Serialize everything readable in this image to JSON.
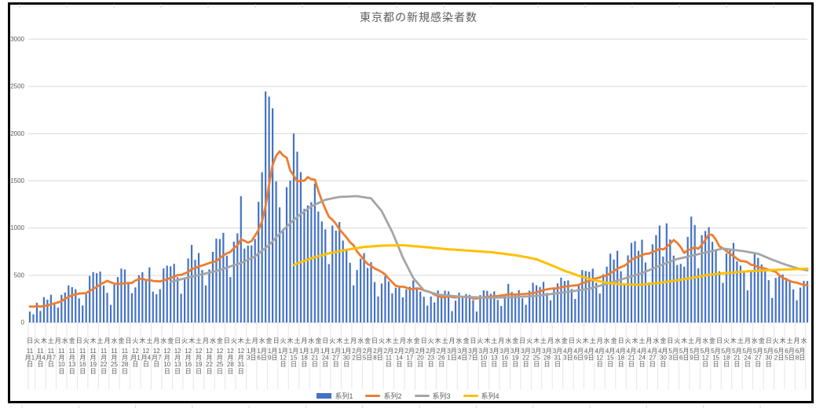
{
  "title": "東京都の新規感染者数",
  "colors": {
    "frame": "#000000",
    "gridline": "#D9D9D9",
    "axis_text": "#595959",
    "tick_separator": "#E6E6E6",
    "sheet_tick": "#D9D9D9"
  },
  "chart_data": {
    "type": "combo_bar_line",
    "title": "東京都の新規感染者数",
    "x_start": "2020-11-01",
    "x_end": "2021-06-10",
    "x_interval_days": 1,
    "first_date_label": "11月1日",
    "last_date_label": "6月8日",
    "date_label_every_days": 3,
    "weekday_label_every_days": 2,
    "weekday_names": [
      "日",
      "月",
      "火",
      "水",
      "木",
      "金",
      "土"
    ],
    "month_numbers": [
      11,
      12,
      1,
      2,
      3,
      4,
      5,
      6
    ],
    "month_lengths": [
      30,
      31,
      31,
      28,
      31,
      30,
      31,
      30
    ],
    "ylim": [
      0,
      3000
    ],
    "y_ticks": [
      0,
      500,
      1000,
      1500,
      2000,
      2500,
      3000
    ],
    "grid": true,
    "legend_position": "bottom",
    "series": [
      {
        "name": "系列1",
        "type": "bar",
        "color": "#4472C4",
        "values": [
          116,
          87,
          209,
          122,
          269,
          242,
          294,
          189,
          157,
          293,
          317,
          393,
          374,
          352,
          255,
          180,
          298,
          493,
          534,
          522,
          539,
          391,
          314,
          186,
          401,
          481,
          570,
          561,
          418,
          311,
          372,
          500,
          533,
          449,
          584,
          327,
          299,
          352,
          572,
          602,
          595,
          621,
          480,
          305,
          460,
          678,
          822,
          664,
          736,
          556,
          392,
          563,
          748,
          888,
          884,
          949,
          708,
          481,
          856,
          944,
          1337,
          783,
          814,
          816,
          884,
          1278,
          1591,
          2447,
          2392,
          2268,
          1494,
          1219,
          970,
          1433,
          1502,
          2001,
          1809,
          1592,
          1204,
          1240,
          1274,
          1471,
          1175,
          1070,
          986,
          618,
          1026,
          973,
          1064,
          868,
          769,
          633,
          393,
          556,
          676,
          734,
          577,
          639,
          429,
          276,
          412,
          491,
          434,
          307,
          369,
          371,
          266,
          350,
          378,
          445,
          353,
          327,
          272,
          178,
          275,
          213,
          340,
          270,
          337,
          329,
          121,
          232,
          316,
          279,
          301,
          293,
          237,
          116,
          290,
          340,
          335,
          304,
          330,
          239,
          175,
          300,
          409,
          323,
          303,
          342,
          256,
          187,
          337,
          420,
          394,
          376,
          430,
          313,
          234,
          364,
          414,
          475,
          440,
          446,
          355,
          249,
          399,
          555,
          545,
          537,
          570,
          421,
          306,
          510,
          591,
          729,
          667,
          759,
          543,
          405,
          711,
          843,
          861,
          759,
          876,
          635,
          425,
          828,
          925,
          1027,
          698,
          1050,
          879,
          708,
          609,
          621,
          591,
          907,
          1121,
          1032,
          573,
          925,
          969,
          1010,
          854,
          772,
          542,
          419,
          732,
          766,
          843,
          649,
          602,
          535,
          340,
          542,
          743,
          684,
          614,
          539,
          448,
          260,
          471,
          487,
          508,
          472,
          436,
          351,
          235,
          369,
          440,
          439
        ]
      },
      {
        "name": "系列2",
        "type": "line",
        "color": "#ED7D31",
        "derivation": "7-day trailing moving average of 系列1",
        "ma_window": 7,
        "ma_seed": [
          102,
          158,
          171,
          221,
          204,
          215
        ]
      },
      {
        "name": "系列3",
        "type": "line",
        "color": "#A5A5A5",
        "points": [
          [
            40,
            430
          ],
          [
            46,
            485
          ],
          [
            53,
            545
          ],
          [
            60,
            630
          ],
          [
            64,
            700
          ],
          [
            68,
            820
          ],
          [
            72,
            980
          ],
          [
            76,
            1120
          ],
          [
            80,
            1230
          ],
          [
            84,
            1300
          ],
          [
            88,
            1330
          ],
          [
            93,
            1338
          ],
          [
            97,
            1315
          ],
          [
            100,
            1180
          ],
          [
            103,
            960
          ],
          [
            106,
            690
          ],
          [
            109,
            470
          ],
          [
            112,
            340
          ],
          [
            116,
            295
          ],
          [
            122,
            275
          ],
          [
            130,
            262
          ],
          [
            137,
            267
          ],
          [
            144,
            282
          ],
          [
            151,
            315
          ],
          [
            159,
            357
          ],
          [
            166,
            432
          ],
          [
            174,
            523
          ],
          [
            181,
            631
          ],
          [
            184,
            672
          ],
          [
            190,
            723
          ],
          [
            197,
            783
          ],
          [
            203,
            755
          ],
          [
            207,
            728
          ],
          [
            211,
            665
          ],
          [
            215,
            610
          ],
          [
            219,
            565
          ],
          [
            221,
            552
          ]
        ]
      },
      {
        "name": "系列4",
        "type": "line",
        "color": "#FFC000",
        "points": [
          [
            75,
            610
          ],
          [
            80,
            680
          ],
          [
            85,
            732
          ],
          [
            90,
            770
          ],
          [
            95,
            800
          ],
          [
            100,
            814
          ],
          [
            106,
            818
          ],
          [
            112,
            800
          ],
          [
            118,
            778
          ],
          [
            125,
            760
          ],
          [
            131,
            745
          ],
          [
            136,
            722
          ],
          [
            140,
            700
          ],
          [
            144,
            670
          ],
          [
            148,
            610
          ],
          [
            152,
            548
          ],
          [
            156,
            495
          ],
          [
            160,
            452
          ],
          [
            164,
            420
          ],
          [
            168,
            406
          ],
          [
            173,
            399
          ],
          [
            177,
            412
          ],
          [
            181,
            430
          ],
          [
            185,
            452
          ],
          [
            189,
            478
          ],
          [
            193,
            505
          ],
          [
            198,
            524
          ],
          [
            204,
            542
          ],
          [
            210,
            554
          ],
          [
            215,
            562
          ],
          [
            221,
            570
          ]
        ]
      }
    ]
  }
}
